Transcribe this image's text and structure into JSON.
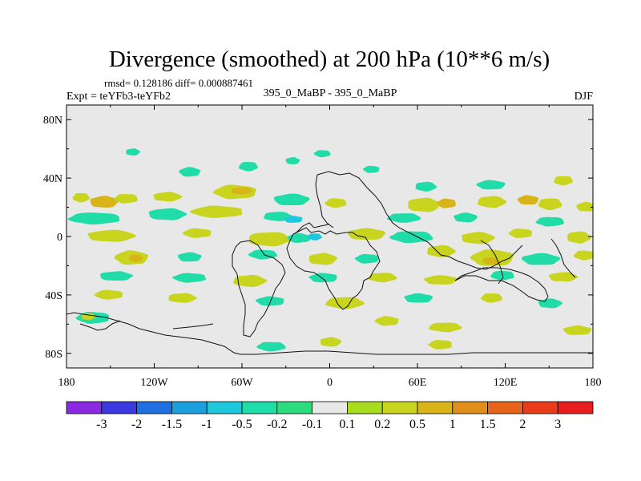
{
  "chart_data": {
    "type": "contour-map",
    "title": "Divergence (smoothed) at 200 hPa (10**6 m/s)",
    "stats_text": "rmsd= 0.128186 diff= 0.000887461",
    "expt_label": "Expt = teYFb3-teYFb2",
    "case_label": "395_0_MaBP - 395_0_MaBP",
    "season": "DJF",
    "xlim": [
      -180,
      180
    ],
    "ylim": [
      -90,
      90
    ],
    "xticks": [
      {
        "value": -180,
        "label": "180"
      },
      {
        "value": -120,
        "label": "120W"
      },
      {
        "value": -60,
        "label": "60W"
      },
      {
        "value": 0,
        "label": "0"
      },
      {
        "value": 60,
        "label": "60E"
      },
      {
        "value": 120,
        "label": "120E"
      },
      {
        "value": 180,
        "label": "180"
      }
    ],
    "yticks": [
      {
        "value": 80,
        "label": "80N"
      },
      {
        "value": 40,
        "label": "40N"
      },
      {
        "value": 0,
        "label": "0"
      },
      {
        "value": -40,
        "label": "40S"
      },
      {
        "value": -80,
        "label": "80S"
      }
    ],
    "colorbar": {
      "levels": [
        "-3",
        "-2",
        "-1.5",
        "-1",
        "-0.5",
        "-0.2",
        "-0.1",
        "0.1",
        "0.2",
        "0.5",
        "1",
        "1.5",
        "2",
        "3"
      ],
      "colors": [
        "#8a2be2",
        "#3a3ae0",
        "#1f6fe0",
        "#1aa0dc",
        "#1ec8dc",
        "#20dca8",
        "#2edc80",
        "#e8e8e8",
        "#a8dc1e",
        "#c8d41e",
        "#d8b418",
        "#e0901a",
        "#e8641a",
        "#e83c1a",
        "#e81e1e"
      ]
    },
    "neutral_color": "#e8e8e8",
    "blobs": [
      {
        "lon": -170,
        "lat": 27,
        "rx": 7,
        "ry": 4,
        "v": 0.3
      },
      {
        "lon": -155,
        "lat": 24,
        "rx": 12,
        "ry": 5,
        "v": 0.6
      },
      {
        "lon": -140,
        "lat": 26,
        "rx": 10,
        "ry": 4,
        "v": 0.3
      },
      {
        "lon": -112,
        "lat": 27,
        "rx": 12,
        "ry": 4,
        "v": 0.3
      },
      {
        "lon": -65,
        "lat": 30,
        "rx": 18,
        "ry": 6,
        "v": 0.3
      },
      {
        "lon": -60,
        "lat": 31,
        "rx": 9,
        "ry": 3,
        "v": 0.6
      },
      {
        "lon": -95,
        "lat": 44,
        "rx": 9,
        "ry": 4,
        "v": -0.3
      },
      {
        "lon": -55,
        "lat": 48,
        "rx": 8,
        "ry": 4,
        "v": -0.3
      },
      {
        "lon": -25,
        "lat": 52,
        "rx": 6,
        "ry": 3,
        "v": -0.3
      },
      {
        "lon": -5,
        "lat": 57,
        "rx": 7,
        "ry": 3,
        "v": -0.3
      },
      {
        "lon": -135,
        "lat": 58,
        "rx": 6,
        "ry": 3,
        "v": -0.3
      },
      {
        "lon": 28,
        "lat": 46,
        "rx": 7,
        "ry": 3,
        "v": -0.3
      },
      {
        "lon": 65,
        "lat": 34,
        "rx": 9,
        "ry": 4,
        "v": -0.3
      },
      {
        "lon": 110,
        "lat": 35,
        "rx": 12,
        "ry": 4,
        "v": -0.3
      },
      {
        "lon": 160,
        "lat": 38,
        "rx": 8,
        "ry": 4,
        "v": 0.3
      },
      {
        "lon": -25,
        "lat": 25,
        "rx": 15,
        "ry": 5,
        "v": -0.3
      },
      {
        "lon": 5,
        "lat": 23,
        "rx": 9,
        "ry": 4,
        "v": 0.3
      },
      {
        "lon": 65,
        "lat": 22,
        "rx": 14,
        "ry": 6,
        "v": 0.3
      },
      {
        "lon": 80,
        "lat": 23,
        "rx": 8,
        "ry": 4,
        "v": 0.6
      },
      {
        "lon": 110,
        "lat": 24,
        "rx": 12,
        "ry": 5,
        "v": 0.3
      },
      {
        "lon": 135,
        "lat": 25,
        "rx": 9,
        "ry": 4,
        "v": 0.6
      },
      {
        "lon": 150,
        "lat": 22,
        "rx": 10,
        "ry": 5,
        "v": 0.3
      },
      {
        "lon": 175,
        "lat": 20,
        "rx": 8,
        "ry": 4,
        "v": 0.3
      },
      {
        "lon": -160,
        "lat": 12,
        "rx": 22,
        "ry": 5,
        "v": -0.3
      },
      {
        "lon": -110,
        "lat": 15,
        "rx": 16,
        "ry": 5,
        "v": -0.3
      },
      {
        "lon": -75,
        "lat": 17,
        "rx": 22,
        "ry": 5,
        "v": 0.3
      },
      {
        "lon": -35,
        "lat": 14,
        "rx": 12,
        "ry": 4,
        "v": -0.3
      },
      {
        "lon": -25,
        "lat": 12,
        "rx": 8,
        "ry": 3,
        "v": -0.6
      },
      {
        "lon": 50,
        "lat": 13,
        "rx": 14,
        "ry": 4,
        "v": -0.3
      },
      {
        "lon": 92,
        "lat": 13,
        "rx": 10,
        "ry": 4,
        "v": -0.3
      },
      {
        "lon": 150,
        "lat": 10,
        "rx": 12,
        "ry": 4,
        "v": -0.3
      },
      {
        "lon": -150,
        "lat": 0,
        "rx": 20,
        "ry": 5,
        "v": 0.3
      },
      {
        "lon": -90,
        "lat": 2,
        "rx": 12,
        "ry": 4,
        "v": 0.3
      },
      {
        "lon": -40,
        "lat": -2,
        "rx": 18,
        "ry": 6,
        "v": 0.3
      },
      {
        "lon": -20,
        "lat": -1,
        "rx": 10,
        "ry": 4,
        "v": -0.3
      },
      {
        "lon": -10,
        "lat": 0,
        "rx": 6,
        "ry": 3,
        "v": -0.6
      },
      {
        "lon": 25,
        "lat": 2,
        "rx": 16,
        "ry": 5,
        "v": 0.3
      },
      {
        "lon": 55,
        "lat": 0,
        "rx": 18,
        "ry": 5,
        "v": -0.3
      },
      {
        "lon": 100,
        "lat": -1,
        "rx": 14,
        "ry": 5,
        "v": 0.3
      },
      {
        "lon": 130,
        "lat": 2,
        "rx": 10,
        "ry": 4,
        "v": 0.3
      },
      {
        "lon": 170,
        "lat": -1,
        "rx": 10,
        "ry": 5,
        "v": 0.3
      },
      {
        "lon": -135,
        "lat": -15,
        "rx": 14,
        "ry": 6,
        "v": 0.3
      },
      {
        "lon": -132,
        "lat": -15,
        "rx": 6,
        "ry": 3,
        "v": 0.6
      },
      {
        "lon": -95,
        "lat": -14,
        "rx": 10,
        "ry": 4,
        "v": -0.3
      },
      {
        "lon": -45,
        "lat": -12,
        "rx": 12,
        "ry": 4,
        "v": -0.3
      },
      {
        "lon": -5,
        "lat": -15,
        "rx": 12,
        "ry": 5,
        "v": 0.3
      },
      {
        "lon": 25,
        "lat": -15,
        "rx": 10,
        "ry": 4,
        "v": -0.3
      },
      {
        "lon": 75,
        "lat": -10,
        "rx": 12,
        "ry": 5,
        "v": 0.3
      },
      {
        "lon": 110,
        "lat": -15,
        "rx": 18,
        "ry": 7,
        "v": 0.3
      },
      {
        "lon": 110,
        "lat": -17,
        "rx": 7,
        "ry": 3,
        "v": 0.9
      },
      {
        "lon": 145,
        "lat": -16,
        "rx": 16,
        "ry": 5,
        "v": -0.3
      },
      {
        "lon": 175,
        "lat": -13,
        "rx": 9,
        "ry": 4,
        "v": 0.3
      },
      {
        "lon": -145,
        "lat": -27,
        "rx": 14,
        "ry": 4,
        "v": -0.3
      },
      {
        "lon": -95,
        "lat": -28,
        "rx": 14,
        "ry": 4,
        "v": -0.3
      },
      {
        "lon": -55,
        "lat": -30,
        "rx": 14,
        "ry": 5,
        "v": 0.3
      },
      {
        "lon": -5,
        "lat": -28,
        "rx": 12,
        "ry": 4,
        "v": -0.3
      },
      {
        "lon": 35,
        "lat": -28,
        "rx": 12,
        "ry": 4,
        "v": 0.3
      },
      {
        "lon": 75,
        "lat": -30,
        "rx": 14,
        "ry": 4,
        "v": 0.3
      },
      {
        "lon": 118,
        "lat": -27,
        "rx": 10,
        "ry": 4,
        "v": -0.3
      },
      {
        "lon": 160,
        "lat": -28,
        "rx": 12,
        "ry": 4,
        "v": 0.3
      },
      {
        "lon": -150,
        "lat": -40,
        "rx": 12,
        "ry": 4,
        "v": 0.3
      },
      {
        "lon": -100,
        "lat": -42,
        "rx": 12,
        "ry": 4,
        "v": 0.3
      },
      {
        "lon": -40,
        "lat": -44,
        "rx": 12,
        "ry": 4,
        "v": -0.3
      },
      {
        "lon": 10,
        "lat": -45,
        "rx": 16,
        "ry": 5,
        "v": 0.3
      },
      {
        "lon": 60,
        "lat": -42,
        "rx": 12,
        "ry": 4,
        "v": -0.3
      },
      {
        "lon": 110,
        "lat": -42,
        "rx": 9,
        "ry": 4,
        "v": 0.3
      },
      {
        "lon": 150,
        "lat": -46,
        "rx": 10,
        "ry": 4,
        "v": -0.3
      },
      {
        "lon": -162,
        "lat": -56,
        "rx": 14,
        "ry": 5,
        "v": -0.3
      },
      {
        "lon": -165,
        "lat": -55,
        "rx": 6,
        "ry": 3,
        "v": 0.3
      },
      {
        "lon": 40,
        "lat": -58,
        "rx": 10,
        "ry": 4,
        "v": 0.3
      },
      {
        "lon": 80,
        "lat": -62,
        "rx": 14,
        "ry": 4,
        "v": 0.3
      },
      {
        "lon": 170,
        "lat": -64,
        "rx": 12,
        "ry": 4,
        "v": 0.3
      },
      {
        "lon": -40,
        "lat": -75,
        "rx": 12,
        "ry": 4,
        "v": -0.3
      },
      {
        "lon": 0,
        "lat": -72,
        "rx": 9,
        "ry": 4,
        "v": 0.3
      },
      {
        "lon": 75,
        "lat": -74,
        "rx": 10,
        "ry": 4,
        "v": 0.3
      }
    ]
  }
}
